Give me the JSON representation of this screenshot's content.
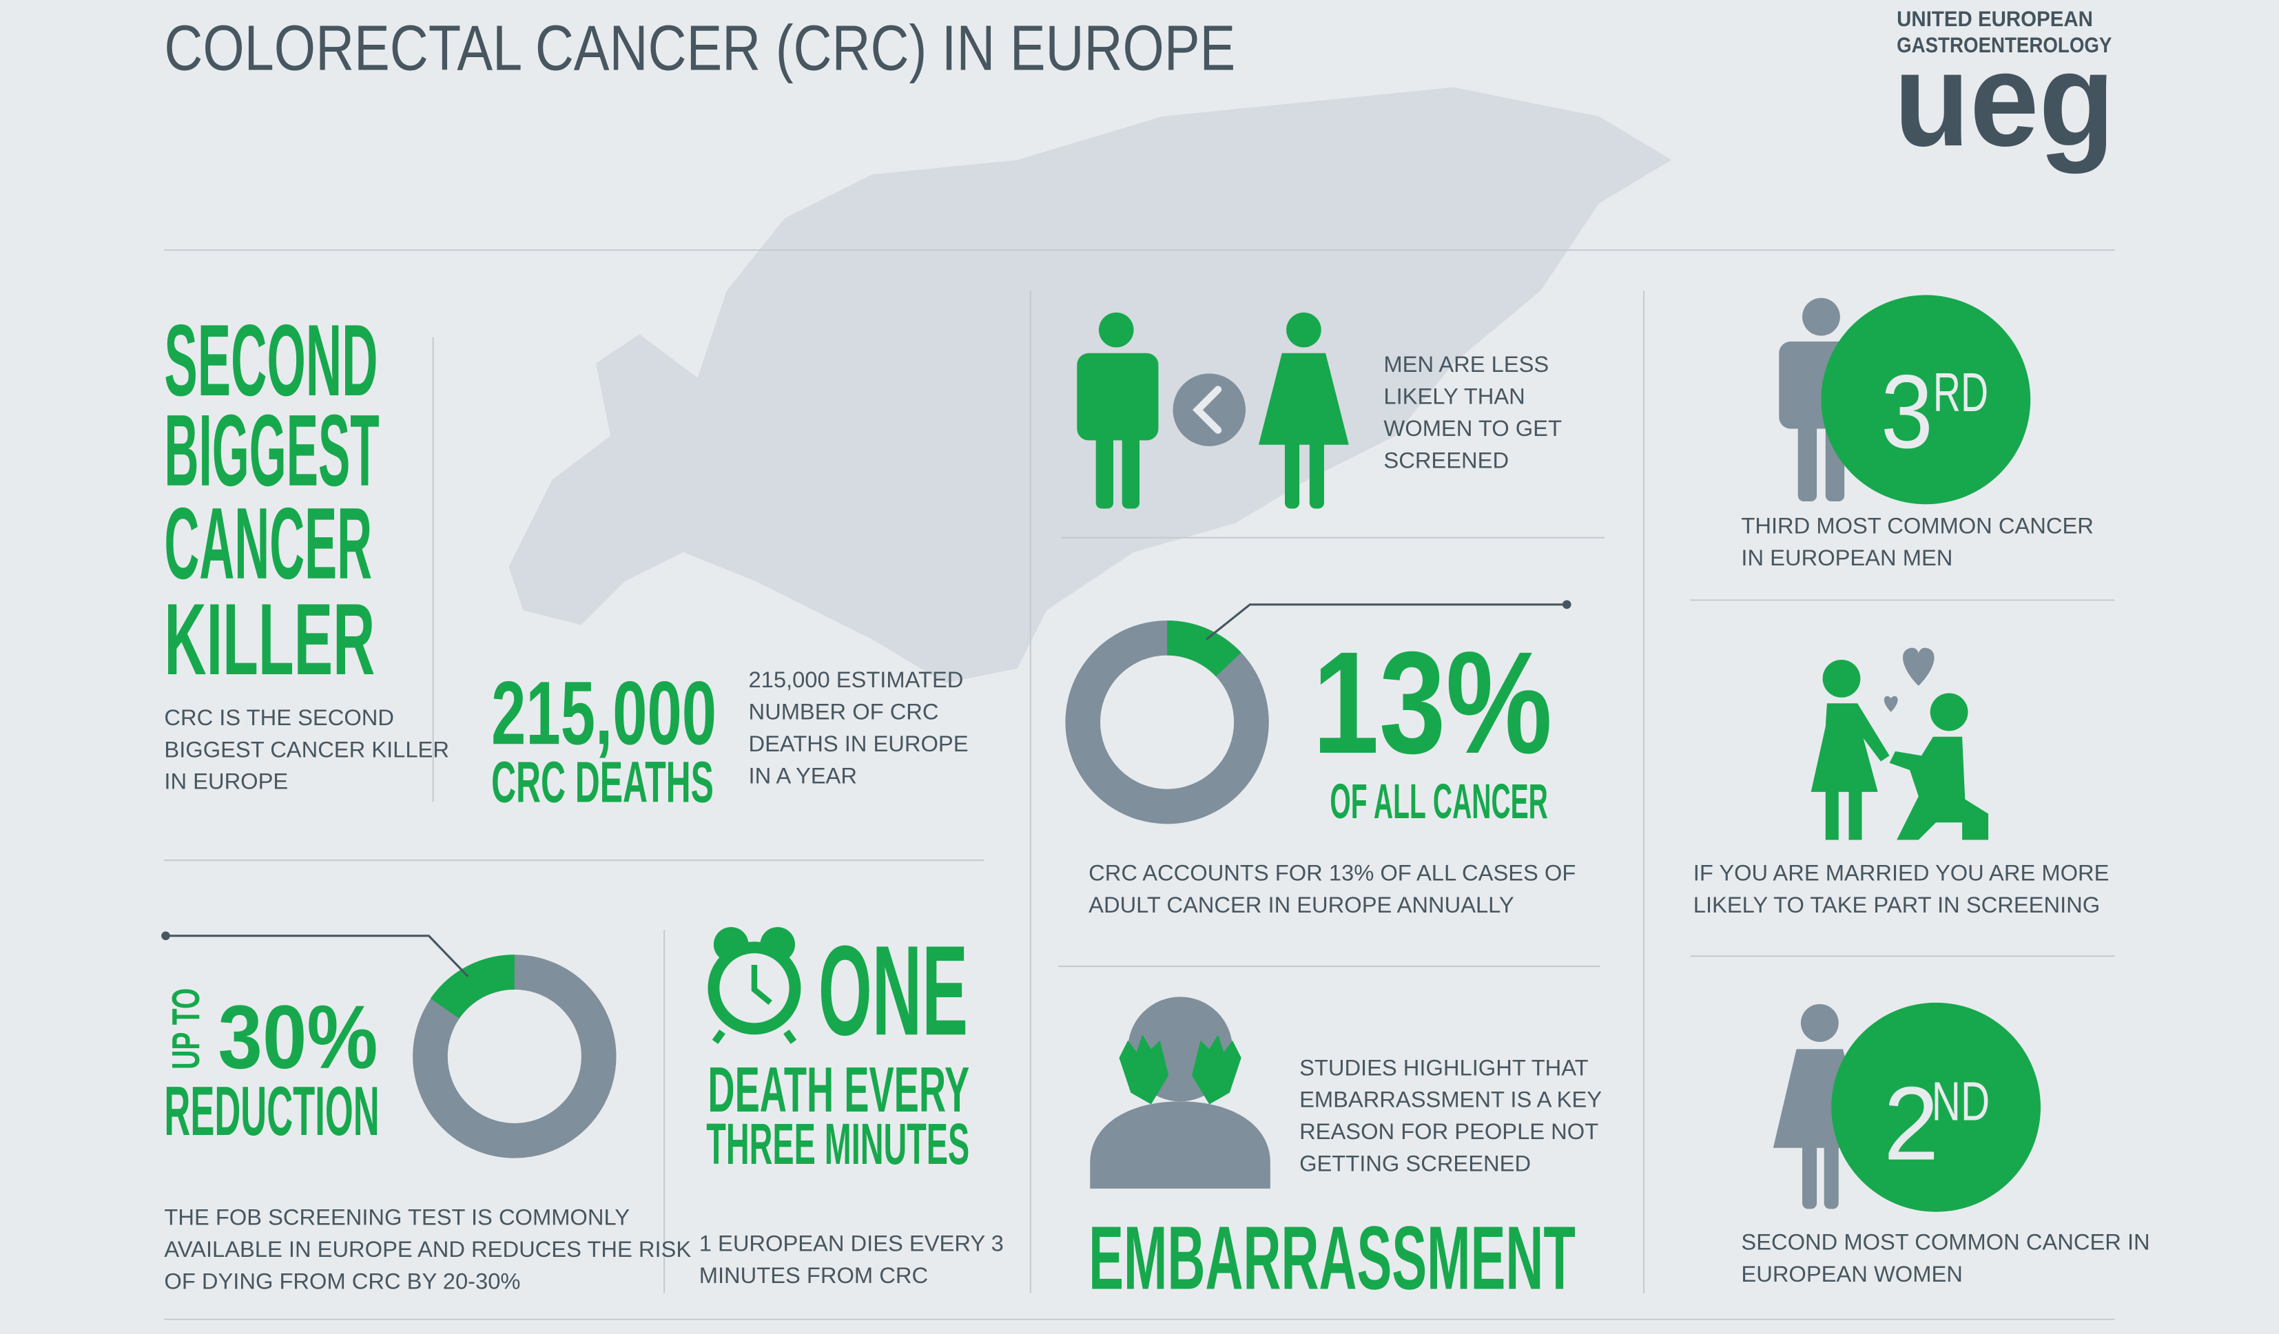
{
  "header": {
    "title": "COLORECTAL CANCER (CRC) IN EUROPE",
    "logo_line1": "UNITED EUROPEAN",
    "logo_line2": "GASTROENTEROLOGY",
    "logo_mark": "ueg"
  },
  "panels": {
    "killer": {
      "headline": [
        "SECOND",
        "BIGGEST",
        "CANCER",
        "KILLER"
      ],
      "text": [
        "CRC IS THE SECOND",
        "BIGGEST CANCER KILLER",
        "IN EUROPE"
      ]
    },
    "deaths": {
      "figure": "215,000",
      "figure_label": "CRC DEATHS",
      "text": [
        "215,000 ESTIMATED",
        "NUMBER OF CRC",
        "DEATHS IN EUROPE",
        "IN A YEAR"
      ]
    },
    "gender": {
      "text": [
        "MEN ARE LESS",
        "LIKELY THAN",
        "WOMEN TO GET",
        "SCREENED"
      ]
    },
    "share": {
      "percent": {
        "value": 13,
        "label": "13%"
      },
      "percent_label": "OF ALL CANCER",
      "text": [
        "CRC ACCOUNTS FOR 13% OF ALL CASES OF",
        "ADULT CANCER IN EUROPE ANNUALLY"
      ]
    },
    "men_rank": {
      "rank": "3",
      "suffix": "RD",
      "text": [
        "THIRD MOST COMMON CANCER",
        "IN EUROPEAN MEN"
      ]
    },
    "married": {
      "text": [
        "IF YOU ARE MARRIED YOU ARE MORE",
        "LIKELY TO TAKE PART IN SCREENING"
      ]
    },
    "women_rank": {
      "rank": "2",
      "suffix": "ND",
      "text": [
        "SECOND MOST COMMON CANCER IN",
        "EUROPEAN WOMEN"
      ]
    },
    "reduction": {
      "prefix": "UP TO",
      "figure": "30%",
      "figure_label": "REDUCTION",
      "text": [
        "THE FOB SCREENING TEST IS COMMONLY",
        "AVAILABLE IN EUROPE AND REDUCES THE RISK",
        "OF DYING FROM CRC BY 20-30%"
      ]
    },
    "frequency": {
      "figure": "ONE",
      "line1": "DEATH EVERY",
      "line2": "THREE MINUTES",
      "text": [
        "1 EUROPEAN DIES EVERY 3",
        "MINUTES FROM CRC"
      ]
    },
    "embarrassment": {
      "text": [
        "STUDIES HIGHLIGHT THAT",
        "EMBARRASSMENT IS A KEY",
        "REASON FOR PEOPLE NOT",
        "GETTING SCREENED"
      ],
      "headline": "EMBARRASSMENT"
    }
  }
}
